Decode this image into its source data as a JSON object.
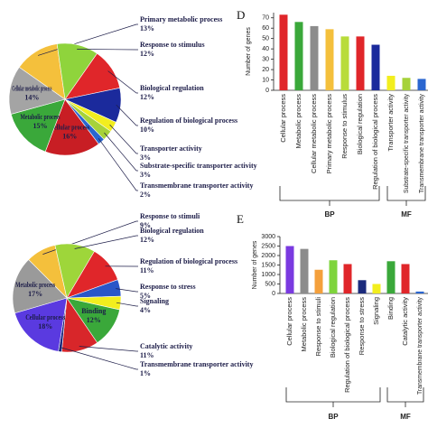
{
  "chart_data": [
    {
      "type": "pie",
      "categories": [
        "Primary metabolic process",
        "Response to stimulus",
        "Biological regulation",
        "Regulation of biological process",
        "Transporter activity",
        "Substrate-specific transporter activity",
        "Transmembrane transporter activity",
        "Cellular process",
        "Metabolic process",
        "Cellular metabolic process"
      ],
      "values": [
        13,
        12,
        12,
        10,
        3,
        3,
        2,
        16,
        15,
        14
      ],
      "value_labels": [
        "13%",
        "12%",
        "12%",
        "10%",
        "3%",
        "3%",
        "2%",
        "16%",
        "15%",
        "14%"
      ],
      "colors": [
        "#f4c03c",
        "#8fd43c",
        "#e0262a",
        "#1b2a9c",
        "#f2ee1e",
        "#a6d23a",
        "#2a66d0",
        "#c81e24",
        "#3aa83a",
        "#a4a4a4"
      ]
    },
    {
      "type": "bar",
      "panel": "D",
      "y_label": "Number of genes",
      "categories": [
        "Cellular process",
        "Metabolic process",
        "Cellular metabolic process",
        "Primary metabolic process",
        "Response to stimulus",
        "Biological regulation",
        "Regulation of biological process",
        "Transporter activity",
        "Substrate-specific transporter activity",
        "Transmembrane transporter activity"
      ],
      "groups": [
        "BP",
        "BP",
        "BP",
        "BP",
        "BP",
        "BP",
        "BP",
        "MF",
        "MF",
        "MF"
      ],
      "values": [
        73,
        66,
        62,
        59,
        52,
        52,
        44,
        14,
        12,
        11
      ],
      "colors": [
        "#e0262a",
        "#3aa83a",
        "#8c8c8c",
        "#f4c03c",
        "#b8dc3a",
        "#e0262a",
        "#1b2a9c",
        "#f2ee1e",
        "#a6d23a",
        "#2a66d0"
      ],
      "ylim": [
        0,
        75
      ],
      "yticks": [
        0,
        10,
        20,
        30,
        40,
        50,
        60,
        70
      ]
    },
    {
      "type": "pie",
      "categories": [
        "Response to stimuli",
        "Biological regulation",
        "Regulation of biological process",
        "Response to stress",
        "Signaling",
        "Binding",
        "Catalytic activity",
        "Transmembrane transporter activity",
        "Cellular process",
        "Metabolic process"
      ],
      "values": [
        9,
        12,
        11,
        5,
        4,
        12,
        11,
        1,
        18,
        17
      ],
      "value_labels": [
        "9%",
        "12%",
        "11%",
        "5%",
        "4%",
        "12%",
        "11%",
        "1%",
        "18%",
        "17%"
      ],
      "colors": [
        "#f4c03c",
        "#9ed63a",
        "#e0262a",
        "#2a56c8",
        "#f2ee1e",
        "#3aa83a",
        "#d8262a",
        "#1b2a7c",
        "#5a3ae0",
        "#9a9a9a"
      ]
    },
    {
      "type": "bar",
      "panel": "E",
      "y_label": "Number of genes",
      "categories": [
        "Cellular process",
        "Metabolic process",
        "Response to stimuli",
        "Biological regulation",
        "Regulation of biological process",
        "Response to stress",
        "Signaling",
        "Binding",
        "Catalytic activity",
        "Transmembrane transporter activity"
      ],
      "groups": [
        "BP",
        "BP",
        "BP",
        "BP",
        "BP",
        "BP",
        "BP",
        "MF",
        "MF",
        "MF"
      ],
      "values": [
        2500,
        2350,
        1250,
        1750,
        1550,
        700,
        500,
        1700,
        1550,
        100
      ],
      "colors": [
        "#7a3ae0",
        "#8c8c8c",
        "#f4a03c",
        "#7ed43c",
        "#e0262a",
        "#1b2a7c",
        "#f2ee1e",
        "#3aa83a",
        "#e0262a",
        "#2a66d0"
      ],
      "ylim": [
        0,
        3000
      ],
      "yticks": [
        0,
        500,
        1000,
        1500,
        2000,
        2500,
        3000
      ]
    }
  ]
}
